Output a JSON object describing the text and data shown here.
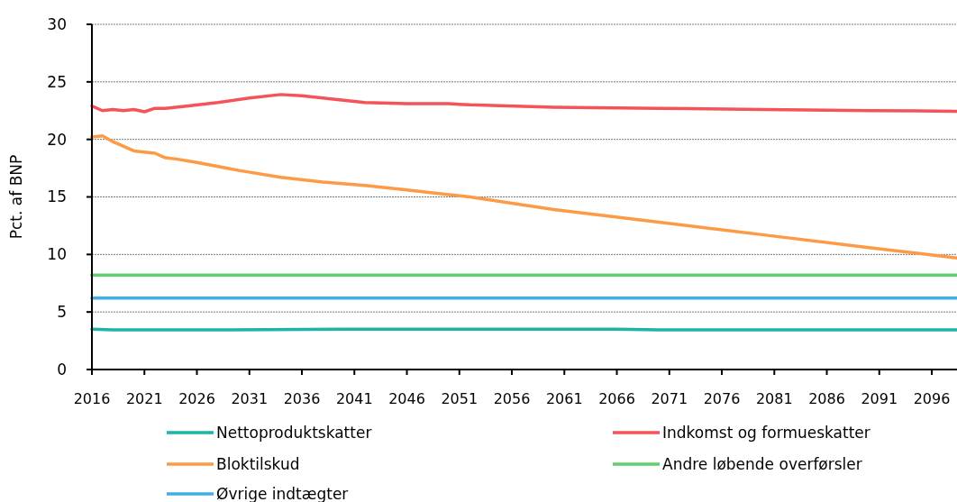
{
  "chart_data": {
    "type": "line",
    "ylabel": "Pct. af BNP",
    "xlim": [
      2016,
      2098.4
    ],
    "xticks": [
      2016,
      2021,
      2026,
      2031,
      2036,
      2041,
      2046,
      2051,
      2056,
      2061,
      2066,
      2071,
      2076,
      2081,
      2086,
      2091,
      2096
    ],
    "ylim": [
      0,
      30
    ],
    "yticks": [
      0,
      5,
      10,
      15,
      20,
      25,
      30
    ],
    "grid": "y",
    "legend": "bottom",
    "series": [
      {
        "name": "Nettoproduktskatter",
        "color": "#1fb3a6",
        "x": [
          2016,
          2018,
          2028,
          2040,
          2066,
          2070,
          2098.4
        ],
        "values": [
          3.5,
          3.45,
          3.45,
          3.5,
          3.5,
          3.45,
          3.45
        ]
      },
      {
        "name": "Indkomst og formueskatter",
        "color": "#f4535a",
        "x": [
          2016,
          2017,
          2018,
          2019,
          2020,
          2021,
          2022,
          2023,
          2025,
          2028,
          2031,
          2034,
          2036,
          2039,
          2042,
          2046,
          2050,
          2052,
          2060,
          2070,
          2080,
          2090,
          2098.4
        ],
        "values": [
          22.9,
          22.5,
          22.6,
          22.5,
          22.6,
          22.4,
          22.7,
          22.7,
          22.9,
          23.2,
          23.6,
          23.9,
          23.8,
          23.5,
          23.2,
          23.1,
          23.1,
          23.0,
          22.8,
          22.7,
          22.6,
          22.5,
          22.45
        ]
      },
      {
        "name": "Bloktilskud",
        "color": "#fd9a45",
        "x": [
          2016,
          2017,
          2018,
          2020,
          2021,
          2022,
          2023,
          2024,
          2026,
          2030,
          2034,
          2038,
          2042,
          2046,
          2050,
          2052,
          2060,
          2070,
          2080,
          2090,
          2098.4
        ],
        "values": [
          20.2,
          20.3,
          19.8,
          19.0,
          18.9,
          18.8,
          18.4,
          18.3,
          18.0,
          17.3,
          16.7,
          16.3,
          16.0,
          15.6,
          15.2,
          15.0,
          13.9,
          12.8,
          11.7,
          10.6,
          9.7
        ]
      },
      {
        "name": "Andre løbende overførsler",
        "color": "#5fcf6d",
        "x": [
          2016,
          2098.4
        ],
        "values": [
          8.2,
          8.2
        ]
      },
      {
        "name": "Øvrige indtægter",
        "color": "#3fb1e0",
        "x": [
          2016,
          2098.4
        ],
        "values": [
          6.2,
          6.2
        ]
      }
    ]
  }
}
